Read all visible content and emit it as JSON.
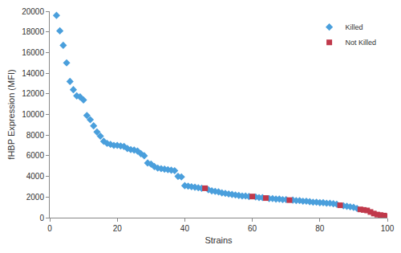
{
  "chart_data": {
    "type": "scatter",
    "x_label": "Strains",
    "y_label": "fHBP Expression (MFI)",
    "xlim": [
      0,
      100
    ],
    "xticks": [
      0,
      20,
      40,
      60,
      80,
      100
    ],
    "ylim": [
      0,
      20000
    ],
    "yticks": [
      0,
      2000,
      4000,
      6000,
      8000,
      10000,
      12000,
      14000,
      16000,
      18000,
      20000
    ],
    "grid": false,
    "legend": "top right",
    "series": [
      {
        "name": "Killed",
        "color": "#4a9fdc",
        "marker": "diamond",
        "x": [
          2,
          3,
          4,
          5,
          6,
          7,
          8,
          9,
          10,
          11,
          12,
          13,
          14,
          15,
          16,
          17,
          18,
          19,
          20,
          21,
          22,
          23,
          24,
          25,
          26,
          27,
          28,
          29,
          30,
          31,
          32,
          33,
          34,
          35,
          36,
          37,
          38,
          39,
          40,
          41,
          42,
          43,
          44,
          45,
          47,
          48,
          49,
          50,
          51,
          52,
          53,
          54,
          55,
          56,
          57,
          58,
          59,
          61,
          62,
          63,
          65,
          66,
          67,
          68,
          69,
          70,
          72,
          73,
          74,
          75,
          76,
          77,
          78,
          79,
          80,
          81,
          82,
          83,
          84,
          85,
          87,
          88,
          89,
          90,
          91
        ],
        "values": [
          19600,
          18100,
          16700,
          15000,
          13200,
          12400,
          11800,
          11700,
          11400,
          9900,
          9500,
          8900,
          8300,
          7900,
          7400,
          7200,
          7100,
          7000,
          7000,
          6950,
          6900,
          6700,
          6600,
          6550,
          6450,
          6200,
          6000,
          5300,
          5200,
          4950,
          4800,
          4750,
          4700,
          4650,
          4600,
          4550,
          4000,
          3950,
          3100,
          3050,
          3000,
          2950,
          2900,
          2850,
          2700,
          2600,
          2550,
          2500,
          2400,
          2350,
          2300,
          2250,
          2200,
          2150,
          2100,
          2100,
          2050,
          2000,
          1950,
          1950,
          1850,
          1850,
          1800,
          1800,
          1750,
          1750,
          1700,
          1650,
          1650,
          1600,
          1600,
          1550,
          1500,
          1500,
          1450,
          1450,
          1400,
          1400,
          1350,
          1300,
          1150,
          1100,
          1050,
          1000,
          900
        ]
      },
      {
        "name": "Not Killed",
        "color": "#c0394b",
        "marker": "square",
        "x": [
          46,
          60,
          64,
          71,
          86,
          92,
          93,
          94,
          95,
          96,
          97,
          98,
          99,
          100
        ],
        "values": [
          2850,
          2050,
          1900,
          1700,
          1200,
          800,
          750,
          700,
          550,
          400,
          300,
          250,
          200,
          150
        ]
      }
    ]
  }
}
